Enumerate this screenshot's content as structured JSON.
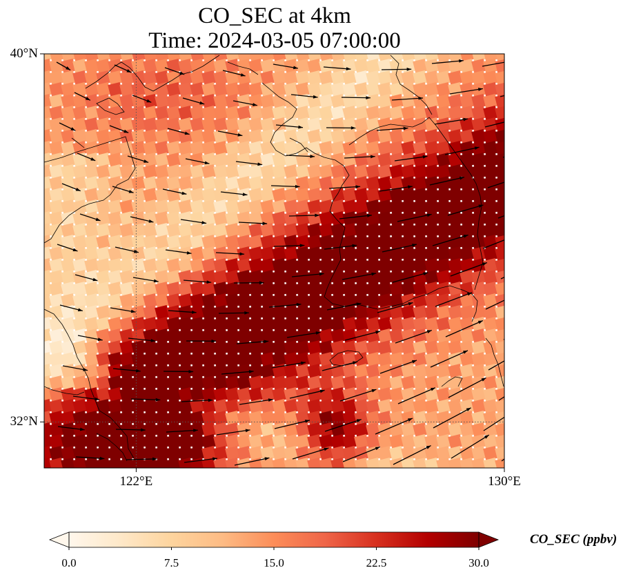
{
  "title": {
    "line1": "CO_SEC at 4km",
    "line2": "Time: 2024-03-05 07:00:00"
  },
  "map": {
    "lon_range": [
      120,
      130
    ],
    "lat_range": [
      31,
      40
    ],
    "lat_ticks": [
      {
        "value": 40,
        "label": "40°N"
      },
      {
        "value": 32,
        "label": "32°N"
      }
    ],
    "lon_ticks": [
      {
        "value": 122,
        "label": "122°E"
      },
      {
        "value": 130,
        "label": "130°E"
      }
    ],
    "gridlines": {
      "lon": [
        122
      ],
      "lat": [
        32
      ],
      "style": "dotted"
    },
    "field_description_colors": [
      "#fff5eb",
      "#fdd49e",
      "#fc8d59",
      "#d7301f",
      "#7f0000"
    ]
  },
  "colorbar": {
    "label": "CO_SEC (ppbv)",
    "min": 0.0,
    "max": 30.0,
    "extend": "both",
    "ticks": [
      {
        "value": 0.0,
        "label": "0.0"
      },
      {
        "value": 7.5,
        "label": "7.5"
      },
      {
        "value": 15.0,
        "label": "15.0"
      },
      {
        "value": 22.5,
        "label": "22.5"
      },
      {
        "value": 30.0,
        "label": "30.0"
      }
    ],
    "colormap": [
      "#fff7ec",
      "#fee8c8",
      "#fdd49e",
      "#fdbb84",
      "#fc8d59",
      "#ef6548",
      "#d7301f",
      "#b30000",
      "#7f0000"
    ]
  }
}
